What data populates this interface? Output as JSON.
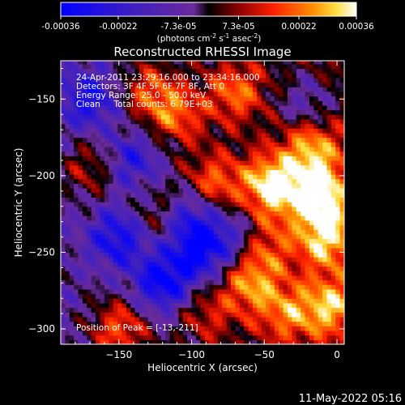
{
  "chart_data": {
    "type": "heatmap",
    "title": "Reconstructed RHESSI Image",
    "colorbar": {
      "ticks": [
        "-0.00036",
        "-0.00022",
        "-7.3e-05",
        "7.3e-05",
        "0.00022",
        "0.00036"
      ],
      "tick_values": [
        -0.00036,
        -0.00022,
        -7.3e-05,
        7.3e-05,
        0.00022,
        0.00036
      ],
      "range": [
        -0.00036,
        0.00036
      ],
      "unit_label": "(photons cm",
      "unit_exp1": "-2",
      "unit_mid": " s",
      "unit_exp2": "-1",
      "unit_mid2": " asec",
      "unit_exp3": "-2",
      "unit_end": ")"
    },
    "xlabel": "Heliocentric X (arcsec)",
    "ylabel": "Heliocentric Y (arcsec)",
    "xlim": [
      -190,
      5
    ],
    "ylim": [
      -310,
      -125
    ],
    "xticks": [
      -150,
      -100,
      -50,
      0
    ],
    "xtick_labels": [
      "−150",
      "−100",
      "−50",
      "0"
    ],
    "yticks": [
      -300,
      -250,
      -200,
      -150
    ],
    "ytick_labels": [
      "−300",
      "−250",
      "−200",
      "−150"
    ],
    "annotations": [
      "24-Apr-2011 23:29:16.000 to 23:34:16.000",
      "Detectors: 3F 4F 5F 6F 7F 8F, Att 0",
      "Energy Range: 25.0 - 50.0 keV",
      "Clean     Total counts: 6.79E+03"
    ],
    "peak_label": "Position of Peak = [-13,-211]",
    "peak": [
      -13,
      -211
    ],
    "hotspots": [
      {
        "x": -45,
        "y": -206,
        "v": 0.00036
      },
      {
        "x": -13,
        "y": -211,
        "v": 0.00036
      },
      {
        "x": -8,
        "y": -240,
        "v": 0.0003
      },
      {
        "x": -18,
        "y": -180,
        "v": 0.00025
      },
      {
        "x": -70,
        "y": -145,
        "v": 0.00022
      },
      {
        "x": -110,
        "y": -160,
        "v": 0.00022
      },
      {
        "x": -130,
        "y": -145,
        "v": 0.0002
      },
      {
        "x": -85,
        "y": -205,
        "v": 0.00024
      },
      {
        "x": -60,
        "y": -270,
        "v": 0.00024
      },
      {
        "x": -35,
        "y": -290,
        "v": 0.0002
      },
      {
        "x": -5,
        "y": -285,
        "v": 0.00026
      },
      {
        "x": -150,
        "y": -300,
        "v": 0.00024
      },
      {
        "x": -170,
        "y": -195,
        "v": 0.00016
      },
      {
        "x": -125,
        "y": -225,
        "v": 0.00012
      },
      {
        "x": -50,
        "y": -245,
        "v": 0.00018
      },
      {
        "x": -90,
        "y": -290,
        "v": 0.00014
      }
    ],
    "coldspots": [
      {
        "x": -120,
        "y": -270,
        "v": -0.0003
      },
      {
        "x": -150,
        "y": -240,
        "v": -0.00026
      },
      {
        "x": -95,
        "y": -250,
        "v": -0.00028
      },
      {
        "x": -170,
        "y": -150,
        "v": -0.00022
      },
      {
        "x": -100,
        "y": -225,
        "v": -0.00022
      },
      {
        "x": -140,
        "y": -190,
        "v": -0.0002
      },
      {
        "x": -20,
        "y": -155,
        "v": -0.00016
      },
      {
        "x": -70,
        "y": -240,
        "v": -0.00018
      }
    ]
  },
  "footer_date": "11-May-2022 05:16"
}
